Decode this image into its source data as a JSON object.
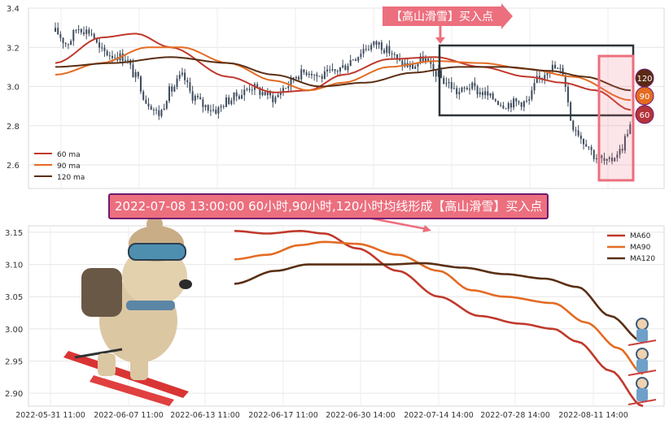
{
  "annotations": {
    "buy_point": "【高山滑雪】买入点",
    "signal": "2022-07-08 13:00:00 60小时,90小时,120小时均线形成【高山滑雪】买入点",
    "badges": [
      "120",
      "90",
      "60"
    ]
  },
  "colors": {
    "ma60": "#c0392b",
    "ma90": "#e36b23",
    "ma120": "#5a2f14",
    "candle": "#3d4b5c",
    "highlight": "#ec6f7e",
    "box": "#2d3439",
    "badge120": "#5a2a12",
    "badge90": "#e56b1f",
    "badge60": "#b4333a"
  },
  "chart_data": [
    {
      "type": "line",
      "subtype": "candlestick_with_moving_averages",
      "ylim": [
        2.48,
        3.4
      ],
      "yticks": [
        "3.4",
        "3.2",
        "3.0",
        "2.8",
        "2.6"
      ],
      "yticks_values": [
        3.4,
        3.2,
        3.0,
        2.8,
        2.6
      ],
      "legend": [
        "60 ma",
        "90 ma",
        "120 ma"
      ],
      "legend_position": "lower-left",
      "grid": true,
      "x_index_range": [
        0,
        100
      ],
      "price_anchors": [
        [
          0,
          3.28
        ],
        [
          2,
          3.22
        ],
        [
          4,
          3.3
        ],
        [
          6,
          3.28
        ],
        [
          8,
          3.18
        ],
        [
          10,
          3.16
        ],
        [
          12,
          3.15
        ],
        [
          14,
          3.05
        ],
        [
          16,
          2.92
        ],
        [
          18,
          2.86
        ],
        [
          20,
          2.98
        ],
        [
          22,
          3.05
        ],
        [
          24,
          2.95
        ],
        [
          26,
          2.9
        ],
        [
          28,
          2.88
        ],
        [
          30,
          2.93
        ],
        [
          32,
          2.96
        ],
        [
          34,
          3.0
        ],
        [
          36,
          2.97
        ],
        [
          38,
          2.94
        ],
        [
          40,
          3.0
        ],
        [
          42,
          3.06
        ],
        [
          44,
          3.08
        ],
        [
          46,
          3.05
        ],
        [
          48,
          3.07
        ],
        [
          50,
          3.1
        ],
        [
          52,
          3.15
        ],
        [
          54,
          3.2
        ],
        [
          56,
          3.22
        ],
        [
          58,
          3.18
        ],
        [
          60,
          3.12
        ],
        [
          62,
          3.1
        ],
        [
          64,
          3.14
        ],
        [
          66,
          3.07
        ],
        [
          68,
          3.02
        ],
        [
          70,
          2.97
        ],
        [
          72,
          3.0
        ],
        [
          74,
          2.97
        ],
        [
          76,
          2.94
        ],
        [
          78,
          2.91
        ],
        [
          80,
          2.92
        ],
        [
          82,
          2.92
        ],
        [
          84,
          3.04
        ],
        [
          86,
          3.1
        ],
        [
          88,
          3.08
        ],
        [
          90,
          2.8
        ],
        [
          92,
          2.72
        ],
        [
          94,
          2.64
        ],
        [
          96,
          2.61
        ],
        [
          98,
          2.67
        ],
        [
          100,
          2.8
        ]
      ],
      "series": [
        {
          "name": "60 ma",
          "points": [
            [
              0,
              3.12
            ],
            [
              8,
              3.25
            ],
            [
              14,
              3.27
            ],
            [
              20,
              3.2
            ],
            [
              30,
              3.05
            ],
            [
              38,
              2.97
            ],
            [
              44,
              2.98
            ],
            [
              50,
              3.06
            ],
            [
              58,
              3.14
            ],
            [
              66,
              3.15
            ],
            [
              74,
              3.1
            ],
            [
              82,
              3.05
            ],
            [
              88,
              3.02
            ],
            [
              94,
              2.98
            ],
            [
              100,
              2.88
            ]
          ]
        },
        {
          "name": "90 ma",
          "points": [
            [
              0,
              3.06
            ],
            [
              8,
              3.12
            ],
            [
              16,
              3.2
            ],
            [
              22,
              3.2
            ],
            [
              30,
              3.12
            ],
            [
              38,
              3.03
            ],
            [
              44,
              2.98
            ],
            [
              50,
              3.02
            ],
            [
              58,
              3.1
            ],
            [
              66,
              3.13
            ],
            [
              74,
              3.12
            ],
            [
              82,
              3.09
            ],
            [
              90,
              3.05
            ],
            [
              100,
              2.93
            ]
          ]
        },
        {
          "name": "120 ma",
          "points": [
            [
              0,
              3.1
            ],
            [
              10,
              3.12
            ],
            [
              20,
              3.15
            ],
            [
              30,
              3.12
            ],
            [
              38,
              3.06
            ],
            [
              46,
              3.0
            ],
            [
              54,
              3.02
            ],
            [
              62,
              3.07
            ],
            [
              70,
              3.1
            ],
            [
              78,
              3.1
            ],
            [
              86,
              3.08
            ],
            [
              92,
              3.05
            ],
            [
              100,
              2.98
            ]
          ]
        }
      ]
    },
    {
      "type": "line",
      "subtype": "moving_averages_zoom",
      "ylim": [
        2.88,
        3.16
      ],
      "yticks": [
        "3.15",
        "3.10",
        "3.05",
        "3.00",
        "2.95",
        "2.90"
      ],
      "yticks_values": [
        3.15,
        3.1,
        3.05,
        3.0,
        2.95,
        2.9
      ],
      "xticks": [
        "2022-05-31 11:00",
        "2022-06-07 11:00",
        "2022-06-13 11:00",
        "2022-06-17 11:00",
        "2022-06-30 14:00",
        "2022-07-14 14:00",
        "2022-07-28 14:00",
        "2022-08-11 14:00"
      ],
      "legend": [
        "MA60",
        "MA90",
        "MA120"
      ],
      "legend_position": "top-right",
      "grid": true,
      "x_index_range": [
        0,
        100
      ],
      "series": [
        {
          "name": "MA60",
          "points": [
            [
              0,
              3.152
            ],
            [
              8,
              3.148
            ],
            [
              16,
              3.152
            ],
            [
              22,
              3.148
            ],
            [
              30,
              3.125
            ],
            [
              40,
              3.09
            ],
            [
              50,
              3.05
            ],
            [
              60,
              3.02
            ],
            [
              70,
              3.008
            ],
            [
              78,
              3.0
            ],
            [
              84,
              2.98
            ],
            [
              92,
              2.935
            ],
            [
              100,
              2.88
            ]
          ]
        },
        {
          "name": "MA90",
          "points": [
            [
              0,
              3.108
            ],
            [
              8,
              3.115
            ],
            [
              16,
              3.13
            ],
            [
              22,
              3.135
            ],
            [
              30,
              3.132
            ],
            [
              40,
              3.115
            ],
            [
              50,
              3.09
            ],
            [
              58,
              3.06
            ],
            [
              66,
              3.05
            ],
            [
              78,
              3.04
            ],
            [
              86,
              3.01
            ],
            [
              94,
              2.97
            ],
            [
              100,
              2.93
            ]
          ]
        },
        {
          "name": "MA120",
          "points": [
            [
              0,
              3.07
            ],
            [
              10,
              3.09
            ],
            [
              18,
              3.1
            ],
            [
              28,
              3.1
            ],
            [
              38,
              3.1
            ],
            [
              46,
              3.102
            ],
            [
              56,
              3.095
            ],
            [
              66,
              3.085
            ],
            [
              76,
              3.078
            ],
            [
              84,
              3.065
            ],
            [
              92,
              3.02
            ],
            [
              100,
              2.98
            ]
          ]
        }
      ]
    }
  ]
}
